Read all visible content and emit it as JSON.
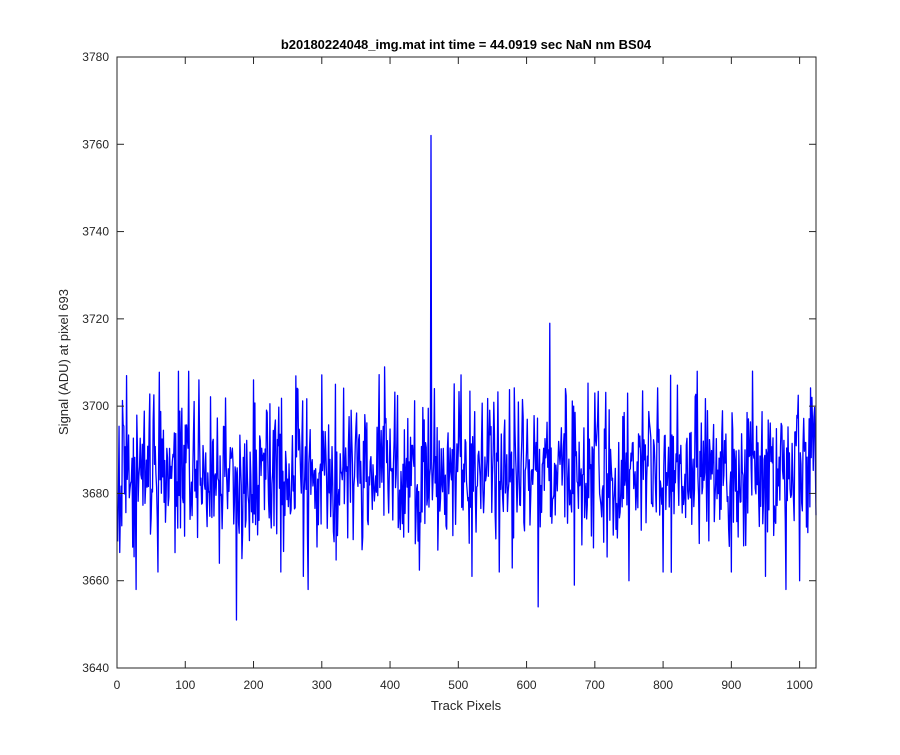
{
  "figure": {
    "background": "#ffffff"
  },
  "chart_data": {
    "type": "line",
    "title": "b20180224048_img.mat int time = 44.0919 sec  NaN nm BS04",
    "xlabel": "Track Pixels",
    "ylabel": "Signal (ADU) at pixel 693",
    "xlim": [
      0,
      1024
    ],
    "ylim": [
      3640,
      3780
    ],
    "xticks": [
      0,
      100,
      200,
      300,
      400,
      500,
      600,
      700,
      800,
      900,
      1000
    ],
    "yticks": [
      3640,
      3660,
      3680,
      3700,
      3720,
      3740,
      3760,
      3780
    ],
    "grid": false,
    "legend": "none",
    "series": [
      {
        "color": "#0000ff",
        "x": [
          1,
          1024
        ],
        "y": [
          3684,
          3686
        ],
        "description_points": {
          "x": [
            1,
            14,
            28,
            60,
            90,
            105,
            120,
            150,
            175,
            200,
            240,
            280,
            320,
            360,
            392,
            420,
            440,
            458,
            460,
            465,
            470,
            500,
            520,
            560,
            600,
            617,
            634,
            650,
            670,
            700,
            750,
            800,
            850,
            900,
            950,
            980,
            1000,
            1018,
            1024
          ],
          "y": [
            3669,
            3707,
            3658,
            3662,
            3708,
            3708,
            3706,
            3664,
            3651,
            3706,
            3662,
            3658,
            3705,
            3670,
            3709,
            3670,
            3682,
            3684,
            3762,
            3704,
            3667,
            3690,
            3661,
            3662,
            3690,
            3654,
            3719,
            3690,
            3659,
            3703,
            3660,
            3662,
            3708,
            3662,
            3661,
            3658,
            3660,
            3702,
            3675
          ]
        }
      }
    ]
  }
}
